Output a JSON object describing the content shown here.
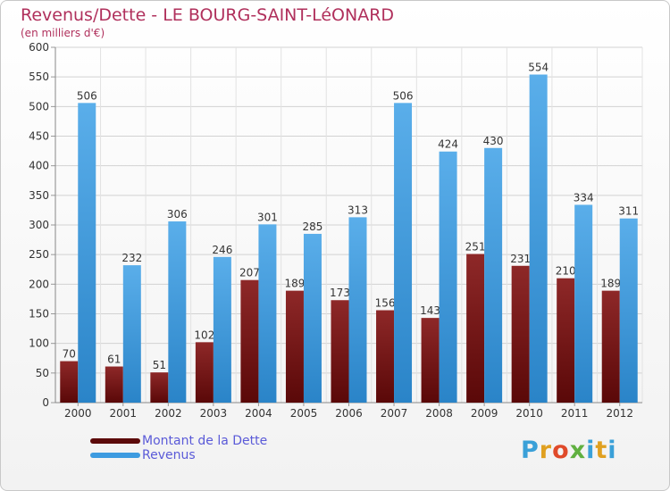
{
  "header": {
    "title": "Revenus/Dette - LE BOURG-SAINT-LéONARD",
    "subtitle": "(en milliers d'€)"
  },
  "chart_data": {
    "type": "bar",
    "categories": [
      "2000",
      "2001",
      "2002",
      "2003",
      "2004",
      "2005",
      "2006",
      "2007",
      "2008",
      "2009",
      "2010",
      "2011",
      "2012"
    ],
    "series": [
      {
        "name": "Montant de la Dette",
        "values": [
          70,
          61,
          51,
          102,
          207,
          189,
          173,
          156,
          143,
          251,
          231,
          210,
          189
        ],
        "color": "#8b1a1a"
      },
      {
        "name": "Revenus",
        "values": [
          506,
          232,
          306,
          246,
          301,
          285,
          313,
          506,
          424,
          430,
          554,
          334,
          311
        ],
        "color": "#3a9ee0"
      }
    ],
    "ylim": [
      0,
      600
    ],
    "yticks": [
      0,
      50,
      100,
      150,
      200,
      250,
      300,
      350,
      400,
      450,
      500,
      550,
      600
    ],
    "grid": true,
    "data_labels": true
  },
  "legend": {
    "items": [
      {
        "label": "Montant de la Dette",
        "color": "#5c0a0a"
      },
      {
        "label": "Revenus",
        "color": "#3d9be0"
      }
    ]
  },
  "logo": {
    "text": "Proxiti",
    "colors": [
      "#3aa0d8",
      "#e0a020",
      "#e04a2a",
      "#60b040",
      "#3aa0d8",
      "#e0a020",
      "#3aa0d8"
    ]
  }
}
